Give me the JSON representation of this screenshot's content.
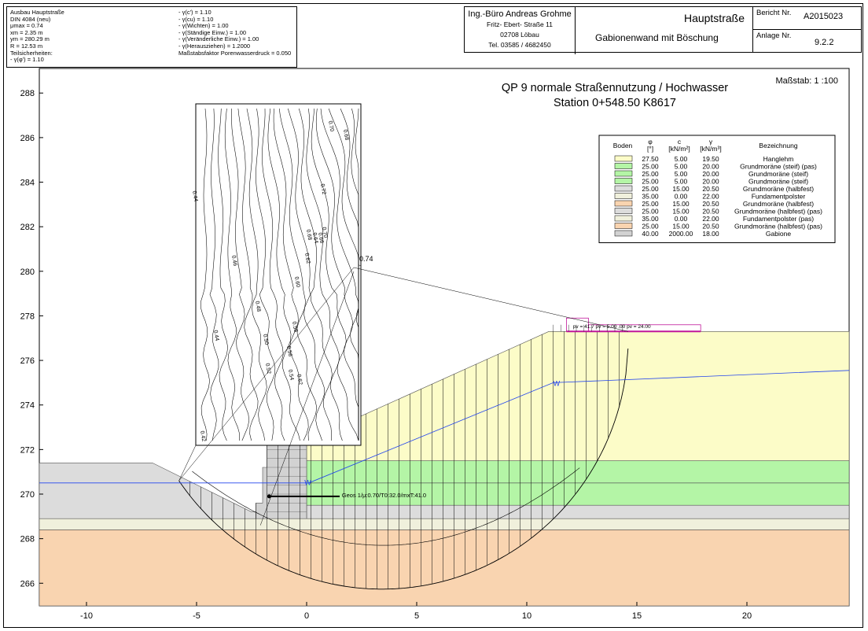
{
  "header": {
    "left": [
      "Ausbau Hauptstraße",
      "DIN 4084 (neu)",
      "μmax = 0.74",
      "xm = 2.35 m",
      "ym = 280.29 m",
      "R = 12.53 m",
      "Teilsicherheiten:",
      "- γ(φ') = 1.10"
    ],
    "right": [
      "- γ(c') = 1.10",
      "- γ(cu) = 1.10",
      "- γ(Wichten) = 1.00",
      "- γ(Ständige Einw.) = 1.00",
      "- γ(Veränderliche Einw.) = 1.00",
      "- γ(Herausziehen) = 1.2000",
      "Maßstabsfaktor Porenwasserdruck = 0.050"
    ]
  },
  "title_block": {
    "company": "Ing.-Büro Andreas Grohme",
    "street": "Fritz- Ebert- Straße 11",
    "city": "02708 Löbau",
    "phone": "Tel. 03585 / 4682450",
    "project": "Hauptstraße",
    "subject": "Gabionenwand mit Böschung",
    "report_label": "Bericht Nr.",
    "report_no": "A2015023",
    "annex_label": "Anlage Nr.",
    "annex_no": "9.2.2"
  },
  "plot": {
    "title": "QP 9 normale Straßennutzung / Hochwasser",
    "subtitle": "Station 0+548.50 K8617",
    "scale": "Maßstab: 1 :100",
    "xticks": [
      -10,
      -5,
      0,
      5,
      10,
      15,
      20
    ],
    "yticks": [
      266,
      268,
      270,
      272,
      274,
      276,
      278,
      280,
      282,
      284,
      286,
      288
    ],
    "min_label": "0.74",
    "contour_labels": [
      "0.44",
      "0.46",
      "0.48",
      "0.50",
      "0.52",
      "0.54",
      "0.56",
      "0.58",
      "0.60",
      "0.62",
      "0.64",
      "0.66",
      "0.68",
      "0.70",
      "0.72",
      "0.70",
      "0.68",
      "0.42",
      "0.44",
      "0.62"
    ],
    "water_labels": [
      "W",
      "W"
    ],
    "geotextile": "Geos 1/μ:0.70/T0:32.0/mxT:41.0",
    "loads": "pv = 41.7 pv = 5.00 .00   pv = 24.00"
  },
  "legend": {
    "headers": [
      {
        "top": "Boden"
      },
      {
        "top": "φ",
        "unit": "[°]"
      },
      {
        "top": "c",
        "unit": "[kN/m²]"
      },
      {
        "top": "γ",
        "unit": "[kN/m³]"
      },
      {
        "top": "Bezeichnung"
      }
    ],
    "rows": [
      {
        "color": "#fcfcc8",
        "phi": "27.50",
        "c": "5.00",
        "gamma": "19.50",
        "name": "Hanglehm"
      },
      {
        "color": "#b4f5a6",
        "phi": "25.00",
        "c": "5.00",
        "gamma": "20.00",
        "name": "Grundmoräne (steif) (pas)"
      },
      {
        "color": "#b4f5a6",
        "phi": "25.00",
        "c": "5.00",
        "gamma": "20.00",
        "name": "Grundmoräne (steif)"
      },
      {
        "color": "#b4f5a6",
        "phi": "25.00",
        "c": "5.00",
        "gamma": "20.00",
        "name": "Grundmoräne (steif)"
      },
      {
        "color": "#dcdcdc",
        "phi": "25.00",
        "c": "15.00",
        "gamma": "20.50",
        "name": "Grundmoräne (halbfest)"
      },
      {
        "color": "#f0f0dc",
        "phi": "35.00",
        "c": "0.00",
        "gamma": "22.00",
        "name": "Fundamentpolster"
      },
      {
        "color": "#f9d4b0",
        "phi": "25.00",
        "c": "15.00",
        "gamma": "20.50",
        "name": "Grundmoräne (halbfest)"
      },
      {
        "color": "#dcdcdc",
        "phi": "25.00",
        "c": "15.00",
        "gamma": "20.50",
        "name": "Grundmoräne (halbfest) (pas)"
      },
      {
        "color": "#f0f0dc",
        "phi": "35.00",
        "c": "0.00",
        "gamma": "22.00",
        "name": "Fundamentpolster (pas)"
      },
      {
        "color": "#f9d4b0",
        "phi": "25.00",
        "c": "15.00",
        "gamma": "20.50",
        "name": "Grundmoräne (halbfest) (pas)"
      },
      {
        "color": "#d2d2d2",
        "phi": "40.00",
        "c": "2000.00",
        "gamma": "18.00",
        "name": "Gabione"
      }
    ]
  }
}
